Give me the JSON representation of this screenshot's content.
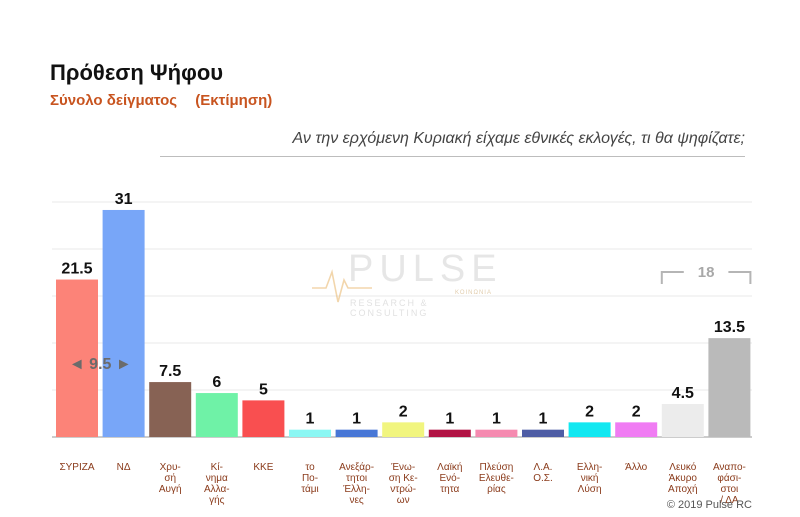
{
  "header": {
    "title": "Πρόθεση Ψήφου",
    "subtitle": "Σύνολο δείγματος",
    "subtitle_note": "(Εκτίμηση)",
    "question": "Αν την ερχόμενη Κυριακή είχαμε εθνικές εκλογές, τι θα ψηφίζατε;"
  },
  "logo": {
    "name": "PULSE",
    "sub": "RESEARCH & CONSULTING",
    "tag": "ΚΟΙΝΩΝΙΑ"
  },
  "credit": "© 2019 Pulse RC",
  "chart_data": {
    "type": "bar",
    "title": "Πρόθεση Ψήφου",
    "categories": [
      [
        "ΣΥΡΙΖΑ"
      ],
      [
        "ΝΔ"
      ],
      [
        "Χρυ-",
        "σή",
        "Αυγή"
      ],
      [
        "Κί-",
        "νημα",
        "Αλλα-",
        "γής"
      ],
      [
        "ΚΚΕ"
      ],
      [
        "το",
        "Πο-",
        "τάμι"
      ],
      [
        "Ανεξάρ-",
        "τητοι",
        "Έλλη-",
        "νες"
      ],
      [
        "Ένω-",
        "ση Κε-",
        "ντρώ-",
        "ων"
      ],
      [
        "Λαϊκή",
        "Ενό-",
        "τητα"
      ],
      [
        "Πλεύση",
        "Ελευθε-",
        "ρίας"
      ],
      [
        "Λ.Α.",
        "Ο.Σ."
      ],
      [
        "Ελλη-",
        "νική",
        "Λύση"
      ],
      [
        "Άλλο"
      ],
      [
        "Λευκό",
        "Άκυρο",
        "Αποχή"
      ],
      [
        "Αναπο-",
        "φάσι-",
        "στοι",
        "/ ΔΑ"
      ]
    ],
    "values": [
      21.5,
      31,
      7.5,
      6,
      5,
      1,
      1,
      2,
      1,
      1,
      1,
      2,
      2,
      4.5,
      13.5
    ],
    "value_labels": [
      "21.5",
      "31",
      "7.5",
      "6",
      "5",
      "1",
      "1",
      "2",
      "1",
      "1",
      "1",
      "2",
      "2",
      "4.5",
      "13.5"
    ],
    "colors": [
      "#fc8378",
      "#78a6f8",
      "#876254",
      "#6ff2a7",
      "#f94f50",
      "#8bf7f3",
      "#4877d6",
      "#f1f57f",
      "#b11344",
      "#f58ab0",
      "#4e5da5",
      "#12e8f1",
      "#f07cf3",
      "#ececec",
      "#bababa"
    ],
    "ylim": [
      0,
      34
    ],
    "grid": true,
    "annotations": [
      {
        "text": "9.5",
        "type": "gap",
        "between": [
          0,
          1
        ]
      },
      {
        "text": "18",
        "type": "bracket",
        "between": [
          13,
          14
        ]
      }
    ]
  }
}
